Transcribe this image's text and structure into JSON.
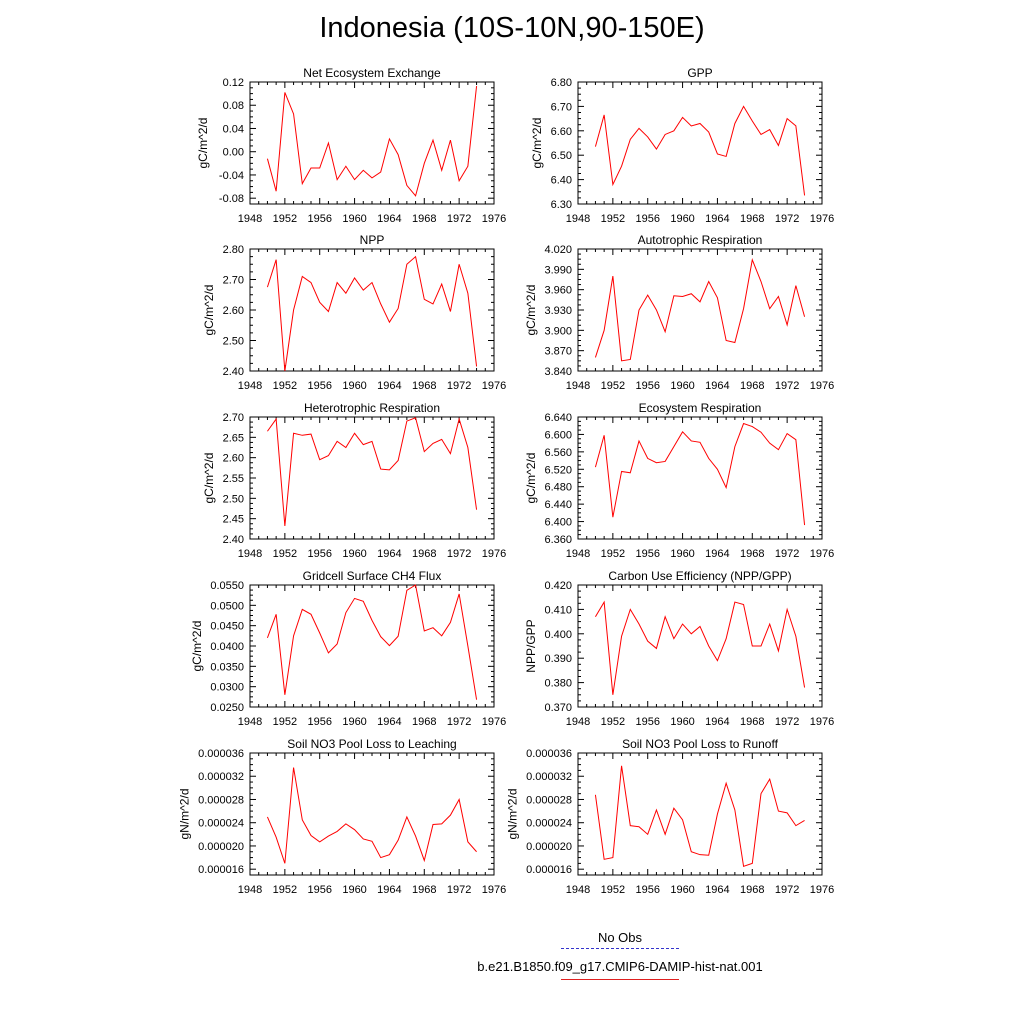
{
  "title": "Indonesia (10S-10N,90-150E)",
  "colors": {
    "series": "#ff0000",
    "obs": "#3333cc",
    "axis": "#000000"
  },
  "legend": {
    "obs_label": "No Obs",
    "model_label": "b.e21.B1850.f09_g17.CMIP6-DAMIP-hist-nat.001"
  },
  "chart_data": [
    {
      "type": "line",
      "title": "Net Ecosystem Exchange",
      "ylabel": "gC/m^2/d",
      "xlim": [
        1948,
        1976
      ],
      "xticks": [
        "1948",
        "1952",
        "1956",
        "1960",
        "1964",
        "1968",
        "1972",
        "1976"
      ],
      "ylim": [
        -0.09,
        0.12
      ],
      "yticks": [
        "-0.08",
        "-0.04",
        "0.00",
        "0.04",
        "0.08",
        "0.12"
      ],
      "x": [
        1950,
        1951,
        1952,
        1953,
        1954,
        1955,
        1956,
        1957,
        1958,
        1959,
        1960,
        1961,
        1962,
        1963,
        1964,
        1965,
        1966,
        1967,
        1968,
        1969,
        1970,
        1971,
        1972,
        1973,
        1974
      ],
      "series": [
        {
          "name": "b.e21.B1850.f09_g17.CMIP6-DAMIP-hist-nat.001",
          "values": [
            -0.012,
            -0.068,
            0.102,
            0.065,
            -0.055,
            -0.028,
            -0.028,
            0.015,
            -0.048,
            -0.025,
            -0.048,
            -0.032,
            -0.045,
            -0.035,
            0.022,
            -0.005,
            -0.058,
            -0.076,
            -0.02,
            0.02,
            -0.032,
            0.02,
            -0.05,
            -0.025,
            0.113
          ]
        }
      ]
    },
    {
      "type": "line",
      "title": "GPP",
      "ylabel": "gC/m^2/d",
      "xlim": [
        1948,
        1976
      ],
      "xticks": [
        "1948",
        "1952",
        "1956",
        "1960",
        "1964",
        "1968",
        "1972",
        "1976"
      ],
      "ylim": [
        6.3,
        6.8
      ],
      "yticks": [
        "6.30",
        "6.40",
        "6.50",
        "6.60",
        "6.70",
        "6.80"
      ],
      "x": [
        1950,
        1951,
        1952,
        1953,
        1954,
        1955,
        1956,
        1957,
        1958,
        1959,
        1960,
        1961,
        1962,
        1963,
        1964,
        1965,
        1966,
        1967,
        1968,
        1969,
        1970,
        1971,
        1972,
        1973,
        1974
      ],
      "series": [
        {
          "name": "b.e21.B1850.f09_g17.CMIP6-DAMIP-hist-nat.001",
          "values": [
            6.535,
            6.665,
            6.38,
            6.455,
            6.565,
            6.61,
            6.575,
            6.525,
            6.585,
            6.6,
            6.655,
            6.62,
            6.63,
            6.595,
            6.505,
            6.495,
            6.63,
            6.7,
            6.64,
            6.585,
            6.605,
            6.54,
            6.65,
            6.62,
            6.335
          ]
        }
      ]
    },
    {
      "type": "line",
      "title": "NPP",
      "ylabel": "gC/m^2/d",
      "xlim": [
        1948,
        1976
      ],
      "xticks": [
        "1948",
        "1952",
        "1956",
        "1960",
        "1964",
        "1968",
        "1972",
        "1976"
      ],
      "ylim": [
        2.4,
        2.8
      ],
      "yticks": [
        "2.40",
        "2.50",
        "2.60",
        "2.70",
        "2.80"
      ],
      "x": [
        1950,
        1951,
        1952,
        1953,
        1954,
        1955,
        1956,
        1957,
        1958,
        1959,
        1960,
        1961,
        1962,
        1963,
        1964,
        1965,
        1966,
        1967,
        1968,
        1969,
        1970,
        1971,
        1972,
        1973,
        1974
      ],
      "series": [
        {
          "name": "b.e21.B1850.f09_g17.CMIP6-DAMIP-hist-nat.001",
          "values": [
            2.675,
            2.765,
            2.4,
            2.6,
            2.71,
            2.69,
            2.625,
            2.595,
            2.69,
            2.655,
            2.705,
            2.665,
            2.69,
            2.62,
            2.56,
            2.605,
            2.75,
            2.775,
            2.635,
            2.62,
            2.685,
            2.595,
            2.75,
            2.655,
            2.415
          ]
        }
      ]
    },
    {
      "type": "line",
      "title": "Autotrophic Respiration",
      "ylabel": "gC/m^2/d",
      "xlim": [
        1948,
        1976
      ],
      "xticks": [
        "1948",
        "1952",
        "1956",
        "1960",
        "1964",
        "1968",
        "1972",
        "1976"
      ],
      "ylim": [
        3.84,
        4.02
      ],
      "yticks": [
        "3.840",
        "3.870",
        "3.900",
        "3.930",
        "3.960",
        "3.990",
        "4.020"
      ],
      "x": [
        1950,
        1951,
        1952,
        1953,
        1954,
        1955,
        1956,
        1957,
        1958,
        1959,
        1960,
        1961,
        1962,
        1963,
        1964,
        1965,
        1966,
        1967,
        1968,
        1969,
        1970,
        1971,
        1972,
        1973,
        1974
      ],
      "series": [
        {
          "name": "b.e21.B1850.f09_g17.CMIP6-DAMIP-hist-nat.001",
          "values": [
            3.86,
            3.9,
            3.98,
            3.855,
            3.857,
            3.93,
            3.952,
            3.93,
            3.898,
            3.951,
            3.95,
            3.954,
            3.942,
            3.972,
            3.948,
            3.885,
            3.882,
            3.932,
            4.004,
            3.972,
            3.932,
            3.95,
            3.908,
            3.966,
            3.92
          ]
        }
      ]
    },
    {
      "type": "line",
      "title": "Heterotrophic Respiration",
      "ylabel": "gC/m^2/d",
      "xlim": [
        1948,
        1976
      ],
      "xticks": [
        "1948",
        "1952",
        "1956",
        "1960",
        "1964",
        "1968",
        "1972",
        "1976"
      ],
      "ylim": [
        2.4,
        2.7
      ],
      "yticks": [
        "2.40",
        "2.45",
        "2.50",
        "2.55",
        "2.60",
        "2.65",
        "2.70"
      ],
      "x": [
        1950,
        1951,
        1952,
        1953,
        1954,
        1955,
        1956,
        1957,
        1958,
        1959,
        1960,
        1961,
        1962,
        1963,
        1964,
        1965,
        1966,
        1967,
        1968,
        1969,
        1970,
        1971,
        1972,
        1973,
        1974
      ],
      "series": [
        {
          "name": "b.e21.B1850.f09_g17.CMIP6-DAMIP-hist-nat.001",
          "values": [
            2.665,
            2.695,
            2.432,
            2.66,
            2.655,
            2.658,
            2.595,
            2.605,
            2.64,
            2.625,
            2.66,
            2.632,
            2.64,
            2.572,
            2.57,
            2.593,
            2.69,
            2.698,
            2.615,
            2.635,
            2.645,
            2.61,
            2.695,
            2.625,
            2.472
          ]
        }
      ]
    },
    {
      "type": "line",
      "title": "Ecosystem Respiration",
      "ylabel": "gC/m^2/d",
      "xlim": [
        1948,
        1976
      ],
      "xticks": [
        "1948",
        "1952",
        "1956",
        "1960",
        "1964",
        "1968",
        "1972",
        "1976"
      ],
      "ylim": [
        6.36,
        6.64
      ],
      "yticks": [
        "6.360",
        "6.400",
        "6.440",
        "6.480",
        "6.520",
        "6.560",
        "6.600",
        "6.640"
      ],
      "x": [
        1950,
        1951,
        1952,
        1953,
        1954,
        1955,
        1956,
        1957,
        1958,
        1959,
        1960,
        1961,
        1962,
        1963,
        1964,
        1965,
        1966,
        1967,
        1968,
        1969,
        1970,
        1971,
        1972,
        1973,
        1974
      ],
      "series": [
        {
          "name": "b.e21.B1850.f09_g17.CMIP6-DAMIP-hist-nat.001",
          "values": [
            6.525,
            6.598,
            6.41,
            6.515,
            6.512,
            6.585,
            6.545,
            6.535,
            6.538,
            6.572,
            6.606,
            6.585,
            6.582,
            6.545,
            6.52,
            6.478,
            6.572,
            6.625,
            6.618,
            6.605,
            6.58,
            6.565,
            6.602,
            6.588,
            6.392
          ]
        }
      ]
    },
    {
      "type": "line",
      "title": "Gridcell Surface CH4 Flux",
      "ylabel": "gC/m^2/d",
      "xlim": [
        1948,
        1976
      ],
      "xticks": [
        "1948",
        "1952",
        "1956",
        "1960",
        "1964",
        "1968",
        "1972",
        "1976"
      ],
      "ylim": [
        0.025,
        0.055
      ],
      "yticks": [
        "0.0250",
        "0.0300",
        "0.0350",
        "0.0400",
        "0.0450",
        "0.0500",
        "0.0550"
      ],
      "x": [
        1950,
        1951,
        1952,
        1953,
        1954,
        1955,
        1956,
        1957,
        1958,
        1959,
        1960,
        1961,
        1962,
        1963,
        1964,
        1965,
        1966,
        1967,
        1968,
        1969,
        1970,
        1971,
        1972,
        1973,
        1974
      ],
      "series": [
        {
          "name": "b.e21.B1850.f09_g17.CMIP6-DAMIP-hist-nat.001",
          "values": [
            0.042,
            0.0478,
            0.028,
            0.0425,
            0.049,
            0.0478,
            0.0432,
            0.0383,
            0.0405,
            0.0482,
            0.0517,
            0.051,
            0.0463,
            0.0423,
            0.0401,
            0.0424,
            0.0537,
            0.055,
            0.0437,
            0.0445,
            0.0425,
            0.0458,
            0.0528,
            0.04,
            0.0268
          ]
        }
      ]
    },
    {
      "type": "line",
      "title": "Carbon Use Efficiency (NPP/GPP)",
      "ylabel": "NPP/GPP",
      "xlim": [
        1948,
        1976
      ],
      "xticks": [
        "1948",
        "1952",
        "1956",
        "1960",
        "1964",
        "1968",
        "1972",
        "1976"
      ],
      "ylim": [
        0.37,
        0.42
      ],
      "yticks": [
        "0.370",
        "0.380",
        "0.390",
        "0.400",
        "0.410",
        "0.420"
      ],
      "x": [
        1950,
        1951,
        1952,
        1953,
        1954,
        1955,
        1956,
        1957,
        1958,
        1959,
        1960,
        1961,
        1962,
        1963,
        1964,
        1965,
        1966,
        1967,
        1968,
        1969,
        1970,
        1971,
        1972,
        1973,
        1974
      ],
      "series": [
        {
          "name": "b.e21.B1850.f09_g17.CMIP6-DAMIP-hist-nat.001",
          "values": [
            0.407,
            0.413,
            0.375,
            0.399,
            0.41,
            0.404,
            0.397,
            0.394,
            0.407,
            0.398,
            0.404,
            0.4,
            0.403,
            0.395,
            0.389,
            0.398,
            0.413,
            0.412,
            0.395,
            0.395,
            0.404,
            0.393,
            0.41,
            0.399,
            0.378
          ]
        }
      ]
    },
    {
      "type": "line",
      "title": "Soil NO3 Pool Loss to Leaching",
      "ylabel": "gN/m^2/d",
      "xlim": [
        1948,
        1976
      ],
      "xticks": [
        "1948",
        "1952",
        "1956",
        "1960",
        "1964",
        "1968",
        "1972",
        "1976"
      ],
      "ylim": [
        1.5e-05,
        3.6e-05
      ],
      "yticks": [
        "0.000016",
        "0.000020",
        "0.000024",
        "0.000028",
        "0.000032",
        "0.000036"
      ],
      "x": [
        1950,
        1951,
        1952,
        1953,
        1954,
        1955,
        1956,
        1957,
        1958,
        1959,
        1960,
        1961,
        1962,
        1963,
        1964,
        1965,
        1966,
        1967,
        1968,
        1969,
        1970,
        1971,
        1972,
        1973,
        1974
      ],
      "series": [
        {
          "name": "b.e21.B1850.f09_g17.CMIP6-DAMIP-hist-nat.001",
          "values": [
            2.5e-05,
            2.15e-05,
            1.7e-05,
            3.35e-05,
            2.45e-05,
            2.18e-05,
            2.07e-05,
            2.17e-05,
            2.25e-05,
            2.38e-05,
            2.28e-05,
            2.12e-05,
            2.08e-05,
            1.8e-05,
            1.85e-05,
            2.1e-05,
            2.5e-05,
            2.17e-05,
            1.75e-05,
            2.37e-05,
            2.38e-05,
            2.53e-05,
            2.8e-05,
            2.07e-05,
            1.9e-05
          ]
        }
      ]
    },
    {
      "type": "line",
      "title": "Soil NO3 Pool Loss to Runoff",
      "ylabel": "gN/m^2/d",
      "xlim": [
        1948,
        1976
      ],
      "xticks": [
        "1948",
        "1952",
        "1956",
        "1960",
        "1964",
        "1968",
        "1972",
        "1976"
      ],
      "ylim": [
        1.5e-05,
        3.6e-05
      ],
      "yticks": [
        "0.000016",
        "0.000020",
        "0.000024",
        "0.000028",
        "0.000032",
        "0.000036"
      ],
      "x": [
        1950,
        1951,
        1952,
        1953,
        1954,
        1955,
        1956,
        1957,
        1958,
        1959,
        1960,
        1961,
        1962,
        1963,
        1964,
        1965,
        1966,
        1967,
        1968,
        1969,
        1970,
        1971,
        1972,
        1973,
        1974
      ],
      "series": [
        {
          "name": "b.e21.B1850.f09_g17.CMIP6-DAMIP-hist-nat.001",
          "values": [
            2.88e-05,
            1.77e-05,
            1.8e-05,
            3.38e-05,
            2.35e-05,
            2.33e-05,
            2.2e-05,
            2.62e-05,
            2.2e-05,
            2.65e-05,
            2.45e-05,
            1.9e-05,
            1.85e-05,
            1.84e-05,
            2.55e-05,
            3.08e-05,
            2.62e-05,
            1.65e-05,
            1.7e-05,
            2.9e-05,
            3.15e-05,
            2.6e-05,
            2.57e-05,
            2.35e-05,
            2.44e-05
          ]
        }
      ]
    }
  ]
}
